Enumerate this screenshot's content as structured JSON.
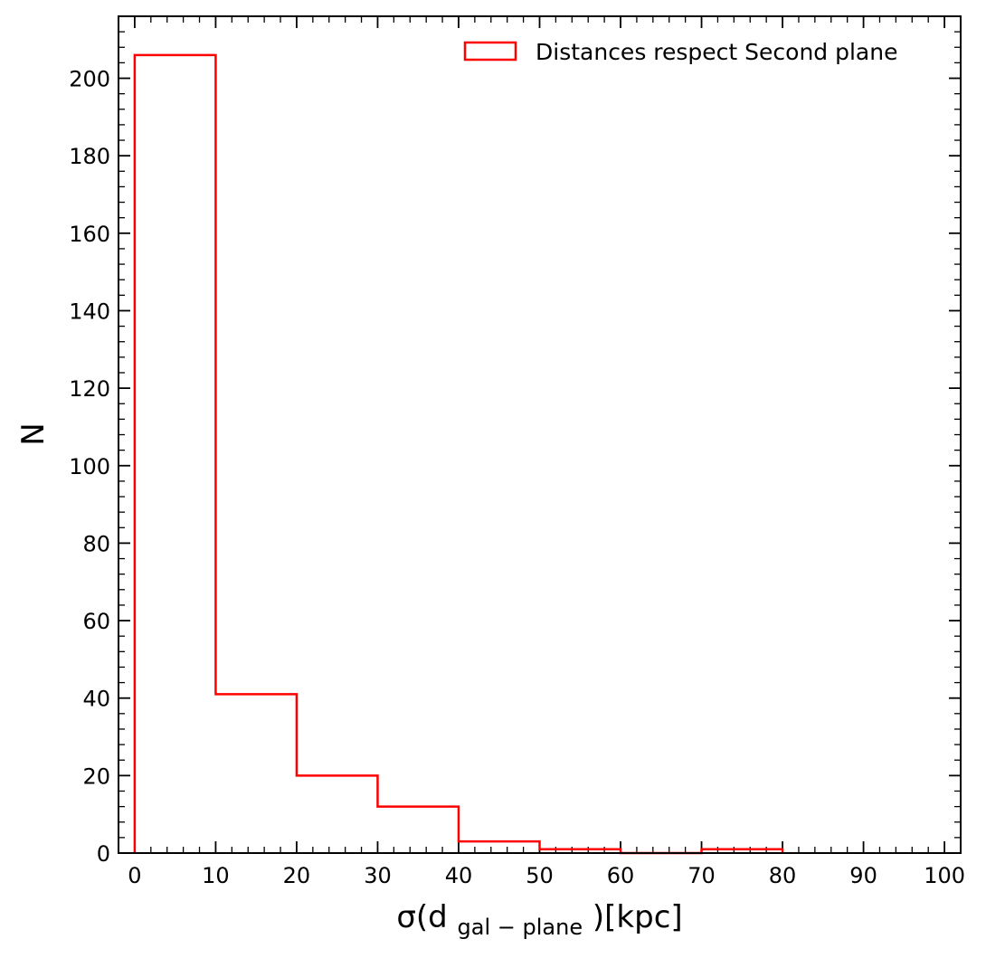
{
  "chart_data": {
    "type": "histogram",
    "bins": [
      {
        "x0": 0,
        "x1": 10,
        "count": 206
      },
      {
        "x0": 10,
        "x1": 20,
        "count": 41
      },
      {
        "x0": 20,
        "x1": 30,
        "count": 20
      },
      {
        "x0": 30,
        "x1": 40,
        "count": 12
      },
      {
        "x0": 40,
        "x1": 50,
        "count": 3
      },
      {
        "x0": 50,
        "x1": 60,
        "count": 1
      },
      {
        "x0": 60,
        "x1": 70,
        "count": 0
      },
      {
        "x0": 70,
        "x1": 80,
        "count": 1
      }
    ],
    "series": [
      {
        "name": "Distances respect Second plane",
        "color": "#ff0000",
        "style": "step-outline"
      }
    ],
    "xlabel": {
      "main": "σ(d",
      "sub": "gal − plane",
      "tail": ")[kpc]"
    },
    "ylabel": "N",
    "xlim": [
      -2,
      102
    ],
    "ylim": [
      0,
      216
    ],
    "xticks": [
      0,
      10,
      20,
      30,
      40,
      50,
      60,
      70,
      80,
      90,
      100
    ],
    "xtick_labels": [
      "0",
      "10",
      "20",
      "30",
      "40",
      "50",
      "60",
      "70",
      "80",
      "90",
      "100"
    ],
    "yticks": [
      0,
      20,
      40,
      60,
      80,
      100,
      120,
      140,
      160,
      180,
      200
    ],
    "ytick_labels": [
      "0",
      "20",
      "40",
      "60",
      "80",
      "100",
      "120",
      "140",
      "160",
      "180",
      "200"
    ],
    "x_minor_step": 2,
    "y_minor_step": 4,
    "legend": "top-right",
    "grid": false
  }
}
